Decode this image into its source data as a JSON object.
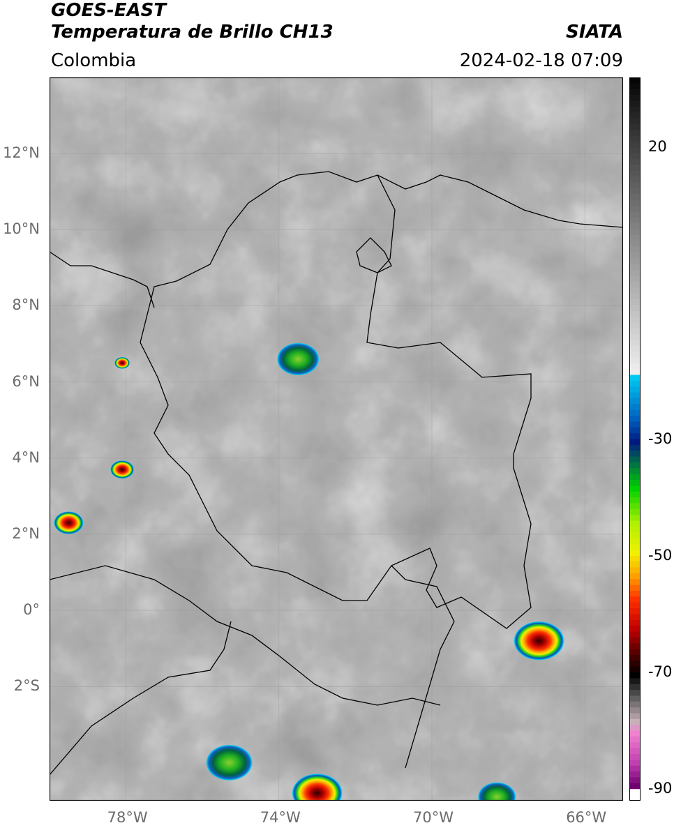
{
  "header": {
    "satellite": "GOES-EAST",
    "product": "Temperatura de Brillo CH13",
    "region": "Colombia",
    "source": "SIATA",
    "datetime": "2024-02-18 07:09"
  },
  "map": {
    "lon_range": [
      -80,
      -65
    ],
    "lat_range": [
      -5,
      14
    ],
    "lat_ticks": [
      {
        "lat": 12,
        "label": "12°N"
      },
      {
        "lat": 10,
        "label": "10°N"
      },
      {
        "lat": 8,
        "label": "8°N"
      },
      {
        "lat": 6,
        "label": "6°N"
      },
      {
        "lat": 4,
        "label": "4°N"
      },
      {
        "lat": 2,
        "label": "2°N"
      },
      {
        "lat": 0,
        "label": "0°"
      },
      {
        "lat": -2,
        "label": "2°S"
      }
    ],
    "lon_ticks": [
      {
        "lon": -78,
        "label": "78°W"
      },
      {
        "lon": -74,
        "label": "74°W"
      },
      {
        "lon": -70,
        "label": "70°W"
      },
      {
        "lon": -66,
        "label": "66°W"
      }
    ],
    "grid": true,
    "background_color": "#6e6e6e",
    "storm_cells": [
      {
        "lon": -73.5,
        "lat": 6.6,
        "r": 0.5,
        "min_temp": -35
      },
      {
        "lon": -78.1,
        "lat": 6.5,
        "r": 0.18,
        "min_temp": -65
      },
      {
        "lon": -78.1,
        "lat": 3.7,
        "r": 0.28,
        "min_temp": -68
      },
      {
        "lon": -79.5,
        "lat": 2.3,
        "r": 0.35,
        "min_temp": -60
      },
      {
        "lon": -67.2,
        "lat": -0.8,
        "r": 0.6,
        "min_temp": -72
      },
      {
        "lon": -75.3,
        "lat": -4.0,
        "r": 0.55,
        "min_temp": -40
      },
      {
        "lon": -73.0,
        "lat": -4.8,
        "r": 0.6,
        "min_temp": -60
      },
      {
        "lon": -68.3,
        "lat": -4.9,
        "r": 0.45,
        "min_temp": -45
      }
    ]
  },
  "colorbar": {
    "range": [
      -92,
      32
    ],
    "ticks": [
      {
        "value": 20,
        "label": "20"
      },
      {
        "value": -30,
        "label": "-30"
      },
      {
        "value": -50,
        "label": "-50"
      },
      {
        "value": -70,
        "label": "-70"
      },
      {
        "value": -90,
        "label": "-90"
      }
    ]
  }
}
